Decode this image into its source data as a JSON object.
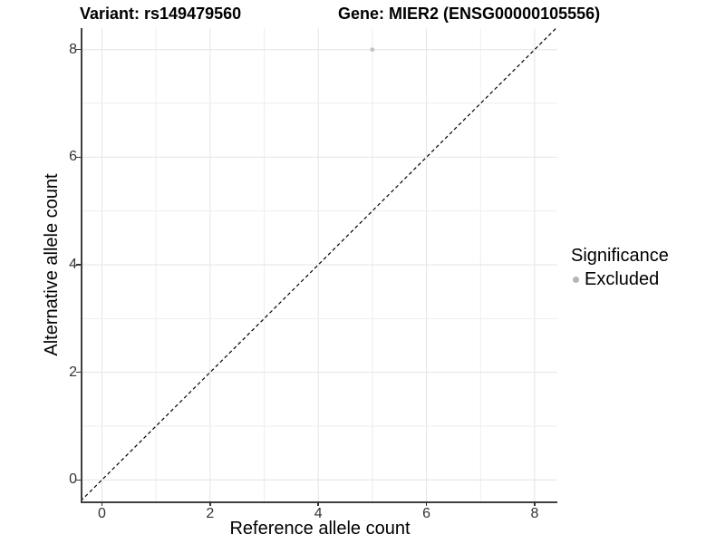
{
  "chart_data": {
    "type": "scatter",
    "title_left": "Variant: rs149479560",
    "title_right": "Gene: MIER2 (ENSG00000105556)",
    "xlabel": "Reference allele count",
    "ylabel": "Alternative allele count",
    "xlim": [
      -0.36,
      8.42
    ],
    "ylim": [
      -0.4,
      8.4
    ],
    "xticks": [
      0,
      2,
      4,
      6,
      8
    ],
    "yticks": [
      0,
      2,
      4,
      6,
      8
    ],
    "grid_interval": 1,
    "grid": "on",
    "legend_position": "right",
    "points": [
      {
        "x": 5,
        "y": 8,
        "significance": "Excluded"
      }
    ],
    "reference_line": {
      "slope": 1,
      "intercept": 0,
      "style": "dashed"
    },
    "legend": {
      "title": "Significance",
      "items": [
        {
          "label": "Excluded",
          "marker": "circle",
          "color": "#b5b5b5"
        }
      ]
    },
    "colors": {
      "background": "#ffffff",
      "point": "#c4c4c4",
      "grid_major": "#e4e4e4",
      "grid_minor": "#eeeeee",
      "axis_line": "#404040",
      "tick_mark": "#333333",
      "tick_text": "#333333",
      "title_text": "#000000",
      "reference_line": "#000000"
    }
  }
}
